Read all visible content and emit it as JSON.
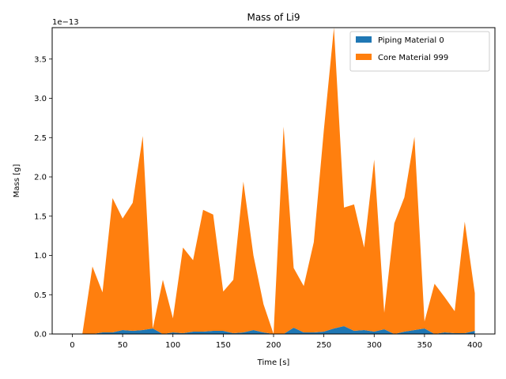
{
  "chart_data": {
    "type": "area",
    "stacked": true,
    "title": "Mass of Li9",
    "xlabel": "Time [s]",
    "ylabel": "Mass [g]",
    "y_scale_label": "1e−13",
    "xlim": [
      -20,
      420
    ],
    "ylim": [
      0,
      3.9
    ],
    "xticks": [
      "0",
      "50",
      "100",
      "150",
      "200",
      "250",
      "300",
      "350",
      "400"
    ],
    "yticks": [
      "0.0",
      "0.5",
      "1.0",
      "1.5",
      "2.0",
      "2.5",
      "3.0",
      "3.5"
    ],
    "legend_position": "top-right",
    "x": [
      0,
      10,
      20,
      30,
      40,
      50,
      60,
      70,
      80,
      90,
      100,
      110,
      120,
      130,
      140,
      150,
      160,
      170,
      180,
      190,
      200,
      210,
      220,
      230,
      240,
      250,
      260,
      270,
      280,
      290,
      300,
      310,
      320,
      330,
      340,
      350,
      360,
      370,
      380,
      390,
      400
    ],
    "series": [
      {
        "name": "Piping Material 0",
        "color": "#1f77b4",
        "values": [
          0,
          0,
          0,
          0.02,
          0.02,
          0.05,
          0.04,
          0.05,
          0.07,
          0,
          0.02,
          0.01,
          0.03,
          0.03,
          0.04,
          0.04,
          0.01,
          0.02,
          0.05,
          0.02,
          0,
          0,
          0.08,
          0.02,
          0.02,
          0.03,
          0.07,
          0.1,
          0.04,
          0.05,
          0.03,
          0.06,
          0,
          0.03,
          0.05,
          0.07,
          0,
          0.02,
          0.01,
          0.01,
          0.04
        ]
      },
      {
        "name": "Core Material 999",
        "color": "#ff7f0e",
        "values": [
          0,
          0,
          0.86,
          0.51,
          1.71,
          1.42,
          1.63,
          2.47,
          0,
          0.69,
          0.18,
          1.09,
          0.91,
          1.55,
          1.48,
          0.5,
          0.68,
          1.92,
          0.95,
          0.36,
          0,
          2.64,
          0.76,
          0.59,
          1.15,
          2.57,
          3.83,
          1.51,
          1.61,
          1.05,
          2.19,
          0.21,
          1.41,
          1.71,
          2.46,
          0.09,
          0.64,
          0.45,
          0.28,
          1.42,
          0.48
        ]
      }
    ]
  }
}
